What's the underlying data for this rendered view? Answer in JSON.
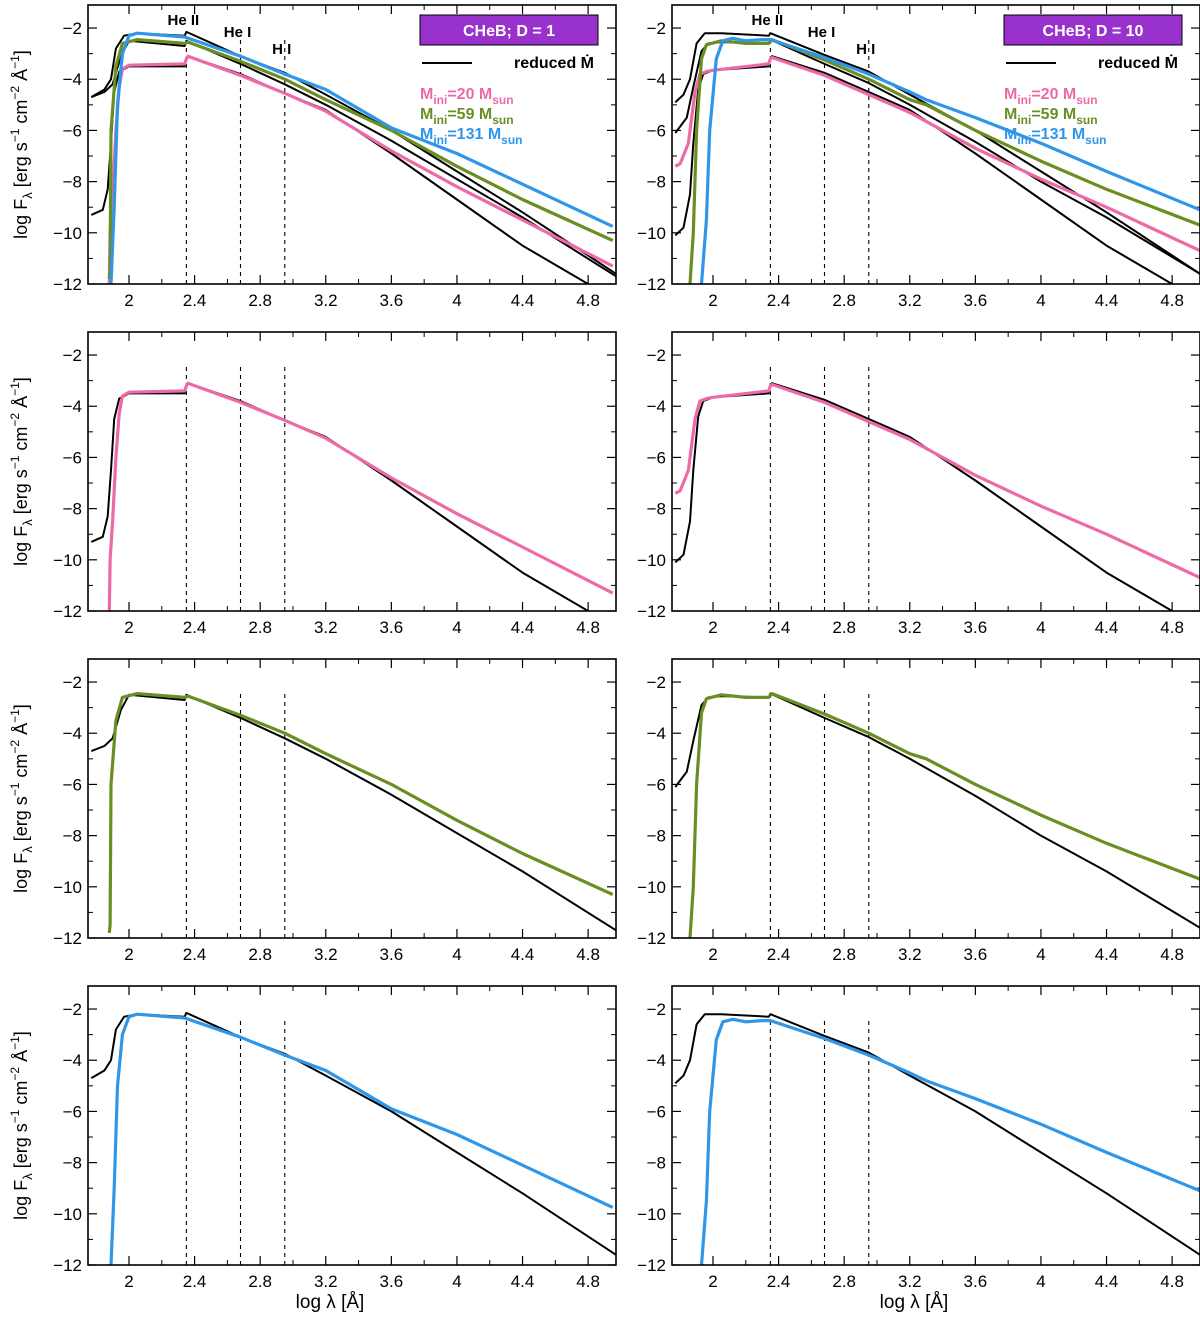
{
  "chart_data": {
    "type": "line",
    "layout": "4 rows x 2 columns of spectral energy distribution panels",
    "xlabel": "log λ  [Å]",
    "ylabel": "log F",
    "ylabel_sub": "λ",
    "yunit_parts": [
      "[erg s",
      "−1",
      " cm",
      "−2",
      " Å",
      "−1",
      "]"
    ],
    "xlim": [
      1.75,
      4.97
    ],
    "ylim": [
      -12,
      -1.1
    ],
    "xticks": [
      2,
      2.4,
      2.8,
      3.2,
      3.6,
      4,
      4.4,
      4.8
    ],
    "xtick_labels": [
      "2",
      "2.4",
      "2.8",
      "3.2",
      "3.6",
      "4",
      "4.4",
      "4.8"
    ],
    "yticks": [
      -2,
      -4,
      -6,
      -8,
      -10,
      -12
    ],
    "ytick_labels": [
      "−2",
      "−4",
      "−6",
      "−8",
      "−10",
      "−12"
    ],
    "edge_lines": [
      {
        "label": "He II",
        "x": 2.35
      },
      {
        "label": "He I",
        "x": 2.68
      },
      {
        "label": "H I",
        "x": 2.95
      }
    ],
    "colors": {
      "reduced": "#000000",
      "m20": "#ee6aa7",
      "m59": "#6b8e23",
      "m131": "#2f96e8",
      "box": "#9932cc"
    },
    "legend": {
      "reduced_label": "reduced Ṁ",
      "entries": [
        {
          "key": "m20",
          "prefix": "M",
          "sub": "ini",
          "mid": "=20 M",
          "sub2": "sun"
        },
        {
          "key": "m59",
          "prefix": "M",
          "sub": "ini",
          "mid": "=59 M",
          "sub2": "sun"
        },
        {
          "key": "m131",
          "prefix": "M",
          "sub": "ini",
          "mid": "=131 M",
          "sub2": "sun"
        }
      ]
    },
    "columns": [
      {
        "title": "CHeB; D = 1",
        "series": {
          "black_m20": [
            [
              1.77,
              -9.3
            ],
            [
              1.84,
              -9.1
            ],
            [
              1.87,
              -8.3
            ],
            [
              1.89,
              -6.5
            ],
            [
              1.91,
              -4.5
            ],
            [
              1.94,
              -3.7
            ],
            [
              2.0,
              -3.5
            ],
            [
              2.34,
              -3.5
            ],
            [
              2.35,
              -3.2
            ],
            [
              2.36,
              -3.1
            ],
            [
              2.68,
              -3.8
            ],
            [
              2.95,
              -4.55
            ],
            [
              3.2,
              -5.2
            ],
            [
              3.6,
              -6.9
            ],
            [
              4.0,
              -8.7
            ],
            [
              4.4,
              -10.5
            ],
            [
              4.8,
              -12.0
            ]
          ],
          "black_m59": [
            [
              1.77,
              -4.7
            ],
            [
              1.85,
              -4.5
            ],
            [
              1.9,
              -4.2
            ],
            [
              1.95,
              -3.1
            ],
            [
              2.0,
              -2.5
            ],
            [
              2.34,
              -2.7
            ],
            [
              2.35,
              -2.5
            ],
            [
              2.68,
              -3.4
            ],
            [
              2.95,
              -4.2
            ],
            [
              3.2,
              -5.0
            ],
            [
              3.6,
              -6.4
            ],
            [
              4.0,
              -7.9
            ],
            [
              4.4,
              -9.4
            ],
            [
              4.97,
              -11.7
            ]
          ],
          "black_m131": [
            [
              1.77,
              -4.7
            ],
            [
              1.85,
              -4.4
            ],
            [
              1.89,
              -4.0
            ],
            [
              1.92,
              -2.8
            ],
            [
              1.97,
              -2.3
            ],
            [
              2.05,
              -2.2
            ],
            [
              2.34,
              -2.3
            ],
            [
              2.35,
              -2.15
            ],
            [
              2.68,
              -3.1
            ],
            [
              2.95,
              -3.75
            ],
            [
              3.2,
              -4.6
            ],
            [
              3.6,
              -6.0
            ],
            [
              4.0,
              -7.6
            ],
            [
              4.4,
              -9.2
            ],
            [
              4.97,
              -11.6
            ]
          ],
          "m20": [
            [
              1.88,
              -12.0
            ],
            [
              1.885,
              -10.0
            ],
            [
              1.9,
              -8.5
            ],
            [
              1.92,
              -6.0
            ],
            [
              1.94,
              -4.3
            ],
            [
              1.96,
              -3.6
            ],
            [
              2.0,
              -3.45
            ],
            [
              2.34,
              -3.4
            ],
            [
              2.35,
              -3.2
            ],
            [
              2.36,
              -3.1
            ],
            [
              2.68,
              -3.85
            ],
            [
              2.95,
              -4.55
            ],
            [
              3.2,
              -5.25
            ],
            [
              3.6,
              -6.8
            ],
            [
              4.0,
              -8.2
            ],
            [
              4.4,
              -9.5
            ],
            [
              4.95,
              -11.3
            ]
          ],
          "m59": [
            [
              1.88,
              -11.8
            ],
            [
              1.885,
              -11.5
            ],
            [
              1.89,
              -6.0
            ],
            [
              1.92,
              -3.5
            ],
            [
              1.96,
              -2.6
            ],
            [
              2.05,
              -2.45
            ],
            [
              2.34,
              -2.6
            ],
            [
              2.36,
              -2.55
            ],
            [
              2.68,
              -3.3
            ],
            [
              2.95,
              -4.0
            ],
            [
              3.2,
              -4.8
            ],
            [
              3.6,
              -6.0
            ],
            [
              4.0,
              -7.4
            ],
            [
              4.4,
              -8.7
            ],
            [
              4.95,
              -10.3
            ]
          ],
          "m131": [
            [
              1.89,
              -12.0
            ],
            [
              1.91,
              -9.0
            ],
            [
              1.93,
              -5.0
            ],
            [
              1.96,
              -3.0
            ],
            [
              2.0,
              -2.3
            ],
            [
              2.05,
              -2.2
            ],
            [
              2.34,
              -2.35
            ],
            [
              2.68,
              -3.1
            ],
            [
              2.95,
              -3.8
            ],
            [
              3.2,
              -4.4
            ],
            [
              3.6,
              -5.9
            ],
            [
              4.0,
              -6.9
            ],
            [
              4.4,
              -8.1
            ],
            [
              4.95,
              -9.75
            ]
          ]
        }
      },
      {
        "title": "CHeB; D = 10",
        "series": {
          "black_m20": [
            [
              1.77,
              -10.1
            ],
            [
              1.82,
              -9.8
            ],
            [
              1.86,
              -8.5
            ],
            [
              1.88,
              -6.5
            ],
            [
              1.91,
              -4.4
            ],
            [
              1.94,
              -3.8
            ],
            [
              2.0,
              -3.65
            ],
            [
              2.34,
              -3.5
            ],
            [
              2.35,
              -3.2
            ],
            [
              2.36,
              -3.1
            ],
            [
              2.68,
              -3.75
            ],
            [
              2.95,
              -4.5
            ],
            [
              3.2,
              -5.2
            ],
            [
              3.6,
              -6.9
            ],
            [
              4.0,
              -8.7
            ],
            [
              4.4,
              -10.5
            ],
            [
              4.8,
              -12.0
            ]
          ],
          "black_m59": [
            [
              1.77,
              -6.1
            ],
            [
              1.84,
              -5.5
            ],
            [
              1.88,
              -4.3
            ],
            [
              1.93,
              -2.9
            ],
            [
              1.97,
              -2.6
            ],
            [
              2.05,
              -2.55
            ],
            [
              2.34,
              -2.6
            ],
            [
              2.35,
              -2.45
            ],
            [
              2.68,
              -3.4
            ],
            [
              2.95,
              -4.15
            ],
            [
              3.2,
              -5.0
            ],
            [
              3.6,
              -6.45
            ],
            [
              4.0,
              -8.0
            ],
            [
              4.4,
              -9.4
            ],
            [
              4.97,
              -11.6
            ]
          ],
          "black_m131": [
            [
              1.77,
              -4.9
            ],
            [
              1.82,
              -4.6
            ],
            [
              1.86,
              -4.0
            ],
            [
              1.9,
              -2.6
            ],
            [
              1.95,
              -2.2
            ],
            [
              2.05,
              -2.2
            ],
            [
              2.34,
              -2.3
            ],
            [
              2.35,
              -2.2
            ],
            [
              2.68,
              -3.05
            ],
            [
              2.95,
              -3.7
            ],
            [
              3.2,
              -4.6
            ],
            [
              3.6,
              -6.0
            ],
            [
              4.0,
              -7.6
            ],
            [
              4.4,
              -9.2
            ],
            [
              4.97,
              -11.6
            ]
          ],
          "m20": [
            [
              1.77,
              -7.4
            ],
            [
              1.8,
              -7.3
            ],
            [
              1.85,
              -6.5
            ],
            [
              1.89,
              -4.5
            ],
            [
              1.92,
              -3.8
            ],
            [
              1.96,
              -3.7
            ],
            [
              2.0,
              -3.65
            ],
            [
              2.34,
              -3.4
            ],
            [
              2.35,
              -3.2
            ],
            [
              2.36,
              -3.15
            ],
            [
              2.68,
              -3.85
            ],
            [
              2.95,
              -4.6
            ],
            [
              3.2,
              -5.3
            ],
            [
              3.6,
              -6.7
            ],
            [
              4.0,
              -7.9
            ],
            [
              4.4,
              -9.0
            ],
            [
              4.97,
              -10.7
            ]
          ],
          "m59": [
            [
              1.86,
              -12.0
            ],
            [
              1.88,
              -10.0
            ],
            [
              1.9,
              -6.0
            ],
            [
              1.93,
              -3.2
            ],
            [
              1.96,
              -2.65
            ],
            [
              2.05,
              -2.5
            ],
            [
              2.2,
              -2.6
            ],
            [
              2.34,
              -2.6
            ],
            [
              2.36,
              -2.45
            ],
            [
              2.68,
              -3.25
            ],
            [
              2.95,
              -4.0
            ],
            [
              3.2,
              -4.8
            ],
            [
              3.3,
              -5.0
            ],
            [
              3.6,
              -6.0
            ],
            [
              4.0,
              -7.2
            ],
            [
              4.4,
              -8.3
            ],
            [
              4.97,
              -9.7
            ]
          ],
          "m131": [
            [
              1.93,
              -12.0
            ],
            [
              1.96,
              -9.5
            ],
            [
              1.98,
              -6.0
            ],
            [
              2.02,
              -3.2
            ],
            [
              2.06,
              -2.5
            ],
            [
              2.12,
              -2.4
            ],
            [
              2.2,
              -2.5
            ],
            [
              2.3,
              -2.45
            ],
            [
              2.35,
              -2.45
            ],
            [
              2.68,
              -3.15
            ],
            [
              2.95,
              -3.8
            ],
            [
              3.2,
              -4.5
            ],
            [
              3.3,
              -4.8
            ],
            [
              3.6,
              -5.5
            ],
            [
              4.0,
              -6.5
            ],
            [
              4.4,
              -7.6
            ],
            [
              4.97,
              -9.1
            ]
          ]
        }
      }
    ]
  }
}
